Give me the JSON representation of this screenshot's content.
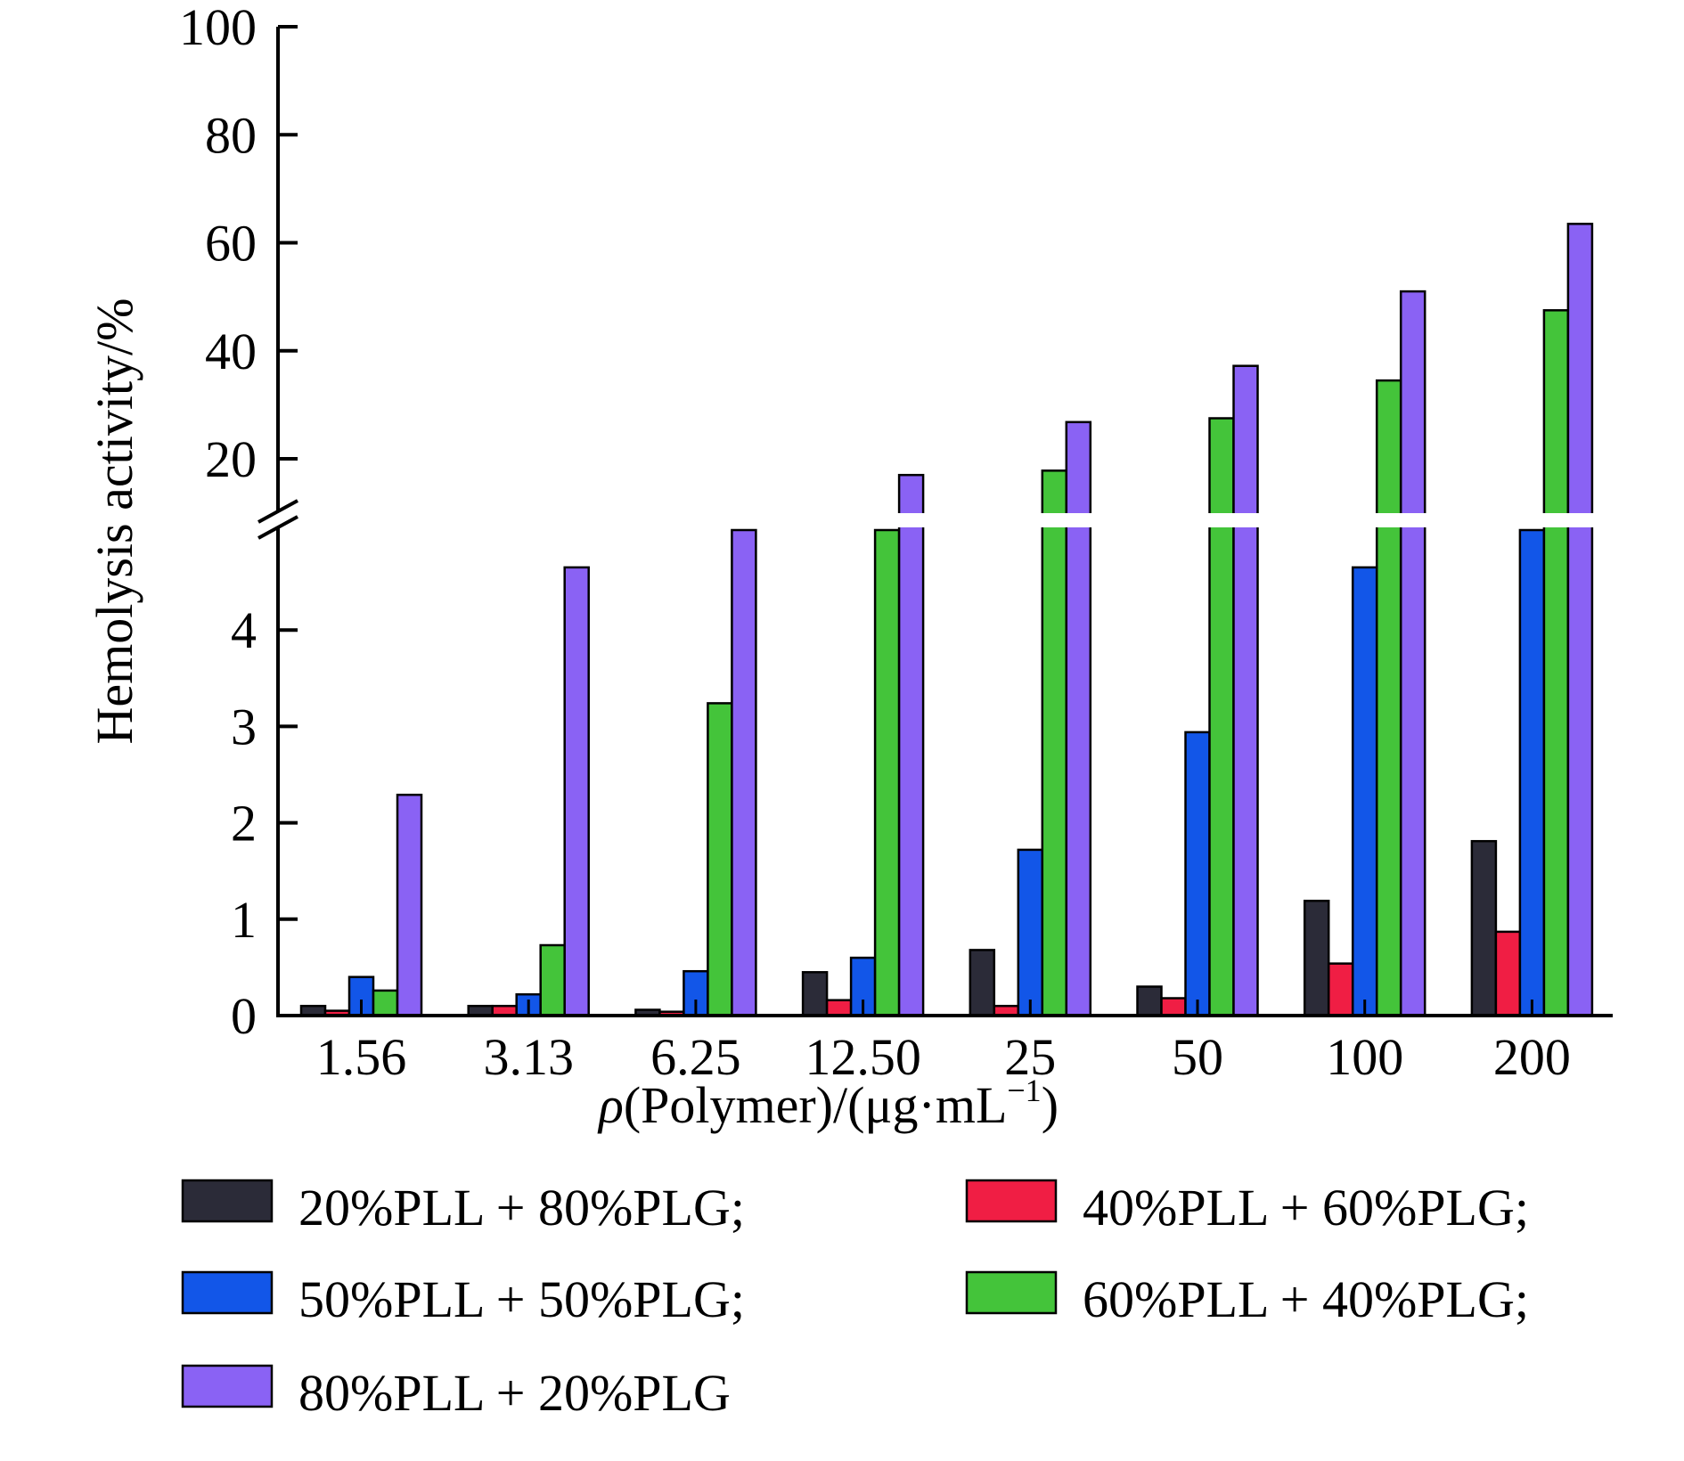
{
  "chart_data": {
    "type": "bar",
    "title": "",
    "xlabel": {
      "italic": "ρ",
      "main": "(Polymer)/(μg·mL",
      "sup": "−1",
      "close": ")"
    },
    "ylabel": "Hemolysis activity/%",
    "axis_break": {
      "lower_range": [
        0,
        5
      ],
      "upper_range": [
        10,
        100
      ]
    },
    "grid": false,
    "legend_position": "bottom",
    "categories": [
      "1.56",
      "3.13",
      "6.25",
      "12.50",
      "25",
      "50",
      "100",
      "200"
    ],
    "lower_ticks": [
      "0",
      "1",
      "2",
      "3",
      "4"
    ],
    "upper_ticks": [
      "20",
      "40",
      "60",
      "80",
      "100"
    ],
    "series": [
      {
        "name": "20%PLL + 80%PLG;",
        "color": "#2b2b38",
        "values": [
          0.1,
          0.1,
          0.06,
          0.45,
          0.68,
          0.3,
          1.19,
          1.81
        ]
      },
      {
        "name": "40%PLL + 60%PLG;",
        "color": "#f01e44",
        "values": [
          0.05,
          0.1,
          0.04,
          0.16,
          0.1,
          0.18,
          0.54,
          0.87
        ]
      },
      {
        "name": "50%PLL + 50%PLG;",
        "color": "#1256e8",
        "values": [
          0.4,
          0.22,
          0.46,
          0.6,
          1.72,
          2.94,
          4.65,
          5
        ]
      },
      {
        "name": "60%PLL + 40%PLG;",
        "color": "#44c43a",
        "values": [
          0.26,
          0.73,
          3.24,
          5,
          17.8,
          27.5,
          34.5,
          47.5
        ]
      },
      {
        "name": "80%PLL + 20%PLG",
        "color": "#8a62f4",
        "values": [
          2.29,
          4.65,
          5,
          17,
          26.8,
          37.2,
          51,
          63.5
        ]
      }
    ]
  }
}
